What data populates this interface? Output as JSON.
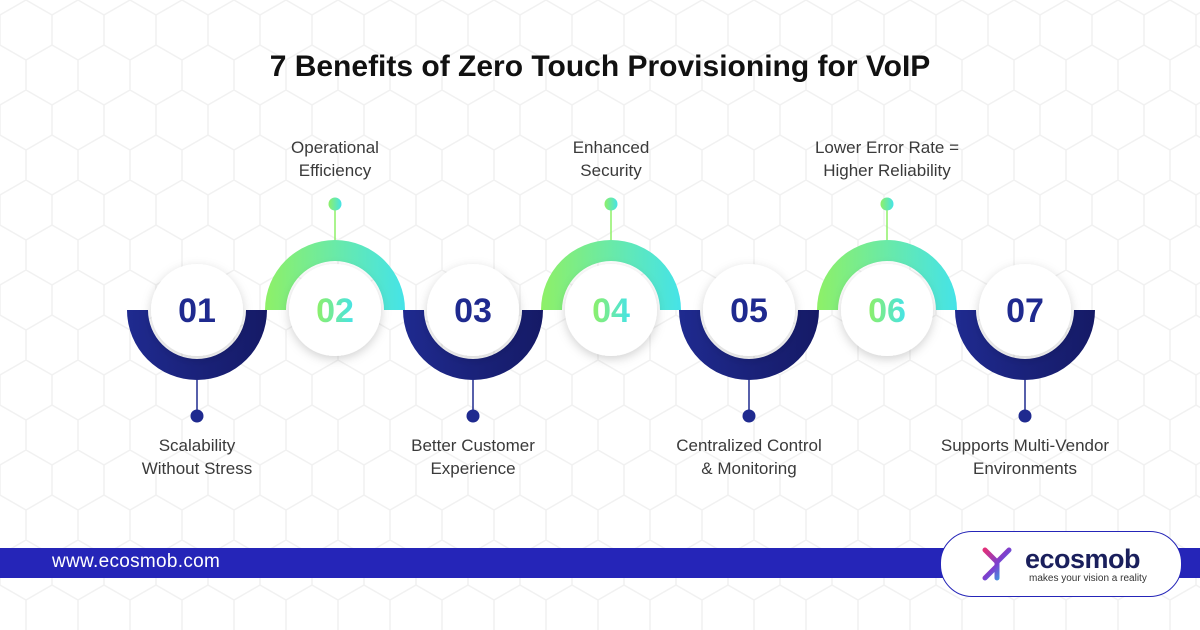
{
  "title": "7 Benefits of Zero Touch Provisioning for VoIP",
  "steps": [
    {
      "number": "01",
      "label": "Scalability Without Stress",
      "position": "bottom",
      "arc_color": "#1f2a8f"
    },
    {
      "number": "02",
      "label": "Operational Efficiency",
      "position": "top",
      "arc_color": "#8ef067"
    },
    {
      "number": "03",
      "label": "Better Customer Experience",
      "position": "bottom",
      "arc_color": "#1f2a8f"
    },
    {
      "number": "04",
      "label": "Enhanced Security",
      "position": "top",
      "arc_color": "#8ef067"
    },
    {
      "number": "05",
      "label": "Centralized Control & Monitoring",
      "position": "bottom",
      "arc_color": "#1f2a8f"
    },
    {
      "number": "06",
      "label": "Lower Error Rate = Higher Reliability",
      "position": "top",
      "arc_color": "#8ef067"
    },
    {
      "number": "07",
      "label": "Supports Multi-Vendor Environments",
      "position": "bottom",
      "arc_color": "#1f2a8f"
    }
  ],
  "colors": {
    "navy": "#1f2a8f",
    "navy_dark": "#151a66",
    "green": "#8ef067",
    "cyan": "#45e3e8",
    "footer_bar": "#2525b8"
  },
  "footer": {
    "url": "www.ecosmob.com"
  },
  "logo": {
    "name": "ecosmob",
    "tagline": "makes your vision a reality",
    "icon": "ecosmob-logo-icon"
  }
}
